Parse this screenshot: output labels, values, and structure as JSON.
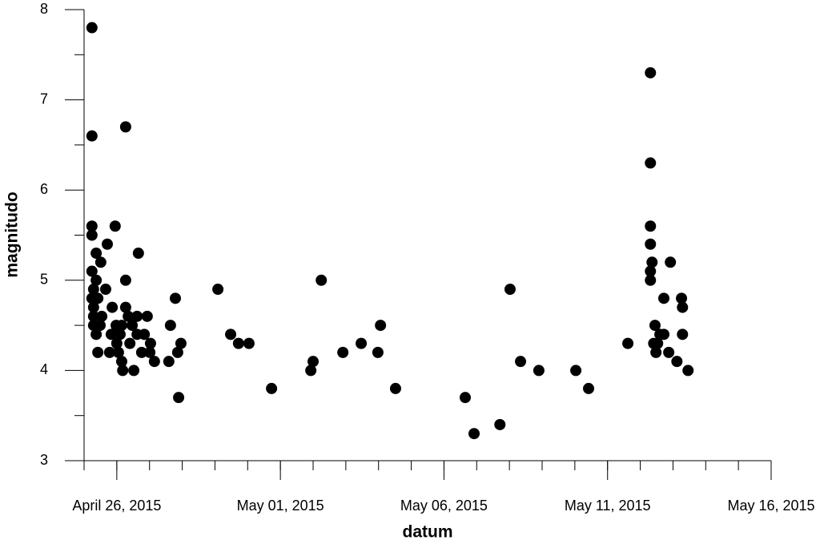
{
  "chart_data": {
    "type": "scatter",
    "xlabel": "datum",
    "ylabel": "magnitudo",
    "color": "#000000",
    "xlim": [
      115,
      136
    ],
    "xticks": [
      {
        "value": 116,
        "label": "April 26, 2015"
      },
      {
        "value": 121,
        "label": "May 01, 2015"
      },
      {
        "value": 126,
        "label": "May 06, 2015"
      },
      {
        "value": 131,
        "label": "May 11, 2015"
      },
      {
        "value": 136,
        "label": "May 16, 2015"
      }
    ],
    "ylim": [
      3,
      8
    ],
    "yticks": [
      3,
      4,
      5,
      6,
      7,
      8
    ],
    "x": [
      115.24,
      115.24,
      116.27,
      115.24,
      115.95,
      115.24,
      115.71,
      115.37,
      116.66,
      115.51,
      115.24,
      115.37,
      116.27,
      115.29,
      115.66,
      115.24,
      115.42,
      115.29,
      115.86,
      116.27,
      115.29,
      115.54,
      116.35,
      116.62,
      116.93,
      115.29,
      115.49,
      115.98,
      116.15,
      116.47,
      117.64,
      115.37,
      115.83,
      116.1,
      116.62,
      116.84,
      116.0,
      116.4,
      117.03,
      117.96,
      115.42,
      115.78,
      116.05,
      116.76,
      117.01,
      117.86,
      116.15,
      117.15,
      117.59,
      116.18,
      116.52,
      117.79,
      117.89,
      119.09,
      119.48,
      119.72,
      120.04,
      120.73,
      121.93,
      122.0,
      122.25,
      122.91,
      123.47,
      123.98,
      124.06,
      124.52,
      126.65,
      126.92,
      127.71,
      128.02,
      128.34,
      128.9,
      130.03,
      130.42,
      131.62,
      132.31,
      132.31,
      132.31,
      132.31,
      132.36,
      132.31,
      132.31,
      132.92,
      132.72,
      133.26,
      133.29,
      132.45,
      132.6,
      132.72,
      133.29,
      132.41,
      132.53,
      132.48,
      132.87,
      133.12,
      133.46
    ],
    "values": [
      7.8,
      6.6,
      6.7,
      5.6,
      5.6,
      5.5,
      5.4,
      5.3,
      5.3,
      5.2,
      5.1,
      5.0,
      5.0,
      4.9,
      4.9,
      4.8,
      4.8,
      4.7,
      4.7,
      4.7,
      4.6,
      4.6,
      4.6,
      4.6,
      4.6,
      4.5,
      4.5,
      4.5,
      4.5,
      4.5,
      4.5,
      4.4,
      4.4,
      4.4,
      4.4,
      4.4,
      4.3,
      4.3,
      4.3,
      4.3,
      4.2,
      4.2,
      4.2,
      4.2,
      4.2,
      4.2,
      4.1,
      4.1,
      4.1,
      4.0,
      4.0,
      4.8,
      3.7,
      4.9,
      4.4,
      4.3,
      4.3,
      3.8,
      4.0,
      4.1,
      5.0,
      4.2,
      4.3,
      4.2,
      4.5,
      3.8,
      3.7,
      3.3,
      3.4,
      4.9,
      4.1,
      4.0,
      4.0,
      3.8,
      4.3,
      7.3,
      6.3,
      5.6,
      5.4,
      5.2,
      5.1,
      5.0,
      5.2,
      4.8,
      4.8,
      4.7,
      4.5,
      4.4,
      4.4,
      4.4,
      4.3,
      4.3,
      4.2,
      4.2,
      4.1,
      4.0
    ]
  }
}
